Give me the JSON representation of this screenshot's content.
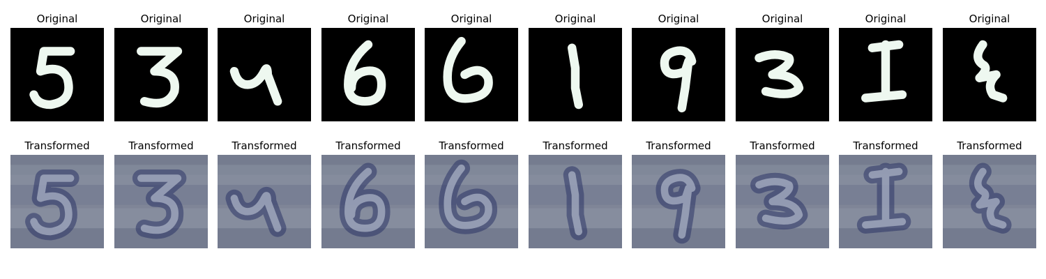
{
  "rows": {
    "original": {
      "label": "Original",
      "digit_color": "#eef8f0",
      "background_color": "#000000"
    },
    "transformed": {
      "label": "Transformed",
      "base_color": "#7f8597",
      "stroke_dark": "#2c3566",
      "stroke_light": "#a9b2c4"
    }
  },
  "pairs": [
    {
      "original_digit": "5",
      "transformed_digit": "5"
    },
    {
      "original_digit": "3",
      "transformed_digit": "3"
    },
    {
      "original_digit": "4",
      "transformed_digit": "4"
    },
    {
      "original_digit": "6",
      "transformed_digit": "6"
    },
    {
      "original_digit": "6",
      "transformed_digit": "6"
    },
    {
      "original_digit": "1",
      "transformed_digit": "1"
    },
    {
      "original_digit": "9",
      "transformed_digit": "9"
    },
    {
      "original_digit": "3",
      "transformed_digit": "3"
    },
    {
      "original_digit": "1",
      "transformed_digit": "1"
    },
    {
      "original_digit": "4",
      "transformed_digit": "4"
    }
  ]
}
